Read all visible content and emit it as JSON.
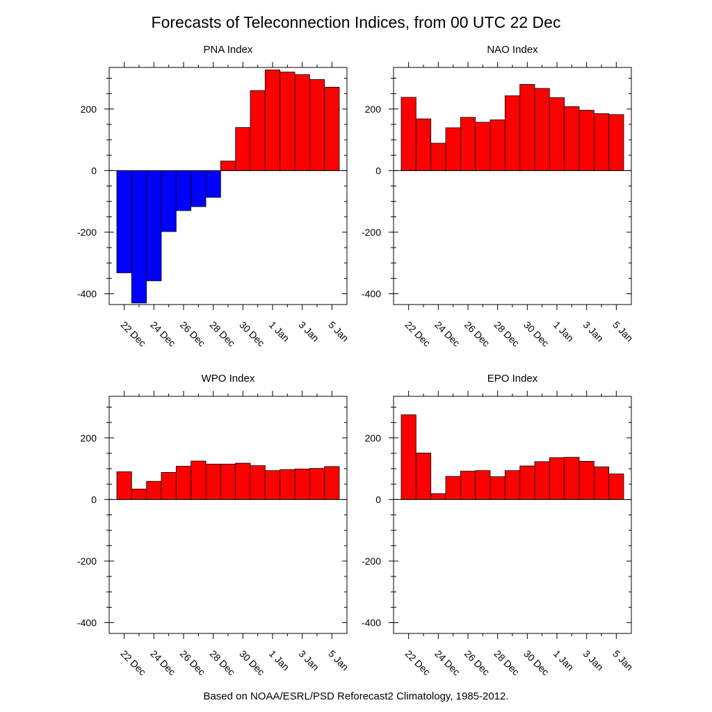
{
  "figure": {
    "title": "Forecasts of Teleconnection Indices, from 00 UTC 22 Dec",
    "footer": "Based on NOAA/ESRL/PSD Reforecast2 Climatology, 1985-2012.",
    "colors": {
      "positive": "#ff0000",
      "negative": "#0000ff",
      "frame": "#000000",
      "background": "#ffffff"
    }
  },
  "chart_data": [
    {
      "type": "bar",
      "title": "PNA Index",
      "xlabel": "",
      "ylabel": "",
      "categories": [
        "22 Dec",
        "23 Dec",
        "24 Dec",
        "25 Dec",
        "26 Dec",
        "27 Dec",
        "28 Dec",
        "29 Dec",
        "30 Dec",
        "31 Dec",
        "1 Jan",
        "2 Jan",
        "3 Jan",
        "4 Jan",
        "5 Jan"
      ],
      "values": [
        -332,
        -430,
        -358,
        -198,
        -130,
        -117,
        -87,
        31,
        140,
        260,
        327,
        320,
        312,
        296,
        271
      ],
      "xtick_labels": [
        "22 Dec",
        "24 Dec",
        "26 Dec",
        "28 Dec",
        "30 Dec",
        "1 Jan",
        "3 Jan",
        "5 Jan"
      ],
      "yticks": [
        -400,
        -200,
        0,
        200
      ],
      "ylim": [
        -435,
        335
      ],
      "grid": false,
      "zero_line": true
    },
    {
      "type": "bar",
      "title": "NAO Index",
      "xlabel": "",
      "ylabel": "",
      "categories": [
        "22 Dec",
        "23 Dec",
        "24 Dec",
        "25 Dec",
        "26 Dec",
        "27 Dec",
        "28 Dec",
        "29 Dec",
        "30 Dec",
        "31 Dec",
        "1 Jan",
        "2 Jan",
        "3 Jan",
        "4 Jan",
        "5 Jan"
      ],
      "values": [
        238,
        168,
        89,
        139,
        173,
        157,
        165,
        243,
        280,
        267,
        237,
        208,
        196,
        185,
        182
      ],
      "xtick_labels": [
        "22 Dec",
        "24 Dec",
        "26 Dec",
        "28 Dec",
        "30 Dec",
        "1 Jan",
        "3 Jan",
        "5 Jan"
      ],
      "yticks": [
        -400,
        -200,
        0,
        200
      ],
      "ylim": [
        -435,
        335
      ],
      "grid": false,
      "zero_line": true
    },
    {
      "type": "bar",
      "title": "WPO Index",
      "xlabel": "",
      "ylabel": "",
      "categories": [
        "22 Dec",
        "23 Dec",
        "24 Dec",
        "25 Dec",
        "26 Dec",
        "27 Dec",
        "28 Dec",
        "29 Dec",
        "30 Dec",
        "31 Dec",
        "1 Jan",
        "2 Jan",
        "3 Jan",
        "4 Jan",
        "5 Jan"
      ],
      "values": [
        90,
        34,
        59,
        88,
        108,
        125,
        115,
        115,
        118,
        110,
        94,
        97,
        99,
        101,
        107
      ],
      "xtick_labels": [
        "22 Dec",
        "24 Dec",
        "26 Dec",
        "28 Dec",
        "30 Dec",
        "1 Jan",
        "3 Jan",
        "5 Jan"
      ],
      "yticks": [
        -400,
        -200,
        0,
        200
      ],
      "ylim": [
        -435,
        335
      ],
      "grid": false,
      "zero_line": true
    },
    {
      "type": "bar",
      "title": "EPO Index",
      "xlabel": "",
      "ylabel": "",
      "categories": [
        "22 Dec",
        "23 Dec",
        "24 Dec",
        "25 Dec",
        "26 Dec",
        "27 Dec",
        "28 Dec",
        "29 Dec",
        "30 Dec",
        "31 Dec",
        "1 Jan",
        "2 Jan",
        "3 Jan",
        "4 Jan",
        "5 Jan"
      ],
      "values": [
        275,
        151,
        19,
        75,
        92,
        94,
        74,
        94,
        109,
        123,
        136,
        137,
        124,
        106,
        83
      ],
      "xtick_labels": [
        "22 Dec",
        "24 Dec",
        "26 Dec",
        "28 Dec",
        "30 Dec",
        "1 Jan",
        "3 Jan",
        "5 Jan"
      ],
      "yticks": [
        -400,
        -200,
        0,
        200
      ],
      "ylim": [
        -435,
        335
      ],
      "grid": false,
      "zero_line": true
    }
  ]
}
